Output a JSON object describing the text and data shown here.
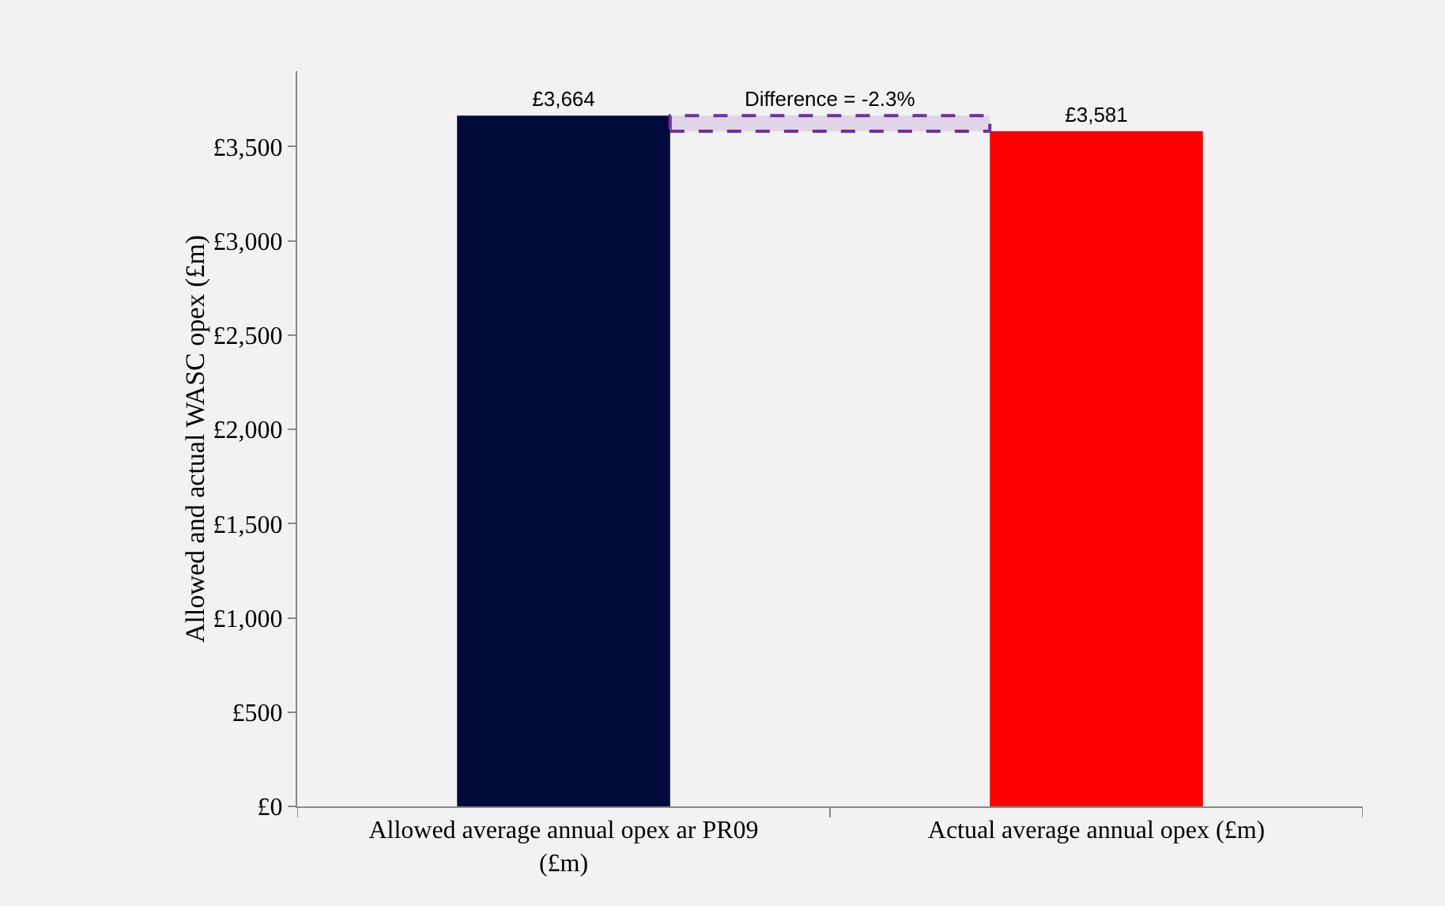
{
  "chart_data": {
    "type": "bar",
    "ylabel": "Allowed and actual WASC opex (£m)",
    "categories": [
      "Allowed average annual opex ar PR09 (£m)",
      "Actual average annual opex (£m)"
    ],
    "values": [
      3664,
      3581
    ],
    "colors": [
      "#000b3c",
      "#ff0000"
    ],
    "value_labels": [
      "£3,664",
      "£3,581"
    ],
    "ylim": [
      0,
      3900
    ],
    "yticks": [
      {
        "value": 0,
        "label": "£0"
      },
      {
        "value": 500,
        "label": "£500"
      },
      {
        "value": 1000,
        "label": "£1,000"
      },
      {
        "value": 1500,
        "label": "£1,500"
      },
      {
        "value": 2000,
        "label": "£2,000"
      },
      {
        "value": 2500,
        "label": "£2,500"
      },
      {
        "value": 3000,
        "label": "£3,000"
      },
      {
        "value": 3500,
        "label": "£3,500"
      }
    ],
    "grid": false,
    "bands": [
      {
        "axis": "y",
        "from": 3581,
        "to": 3664,
        "label": "Difference = -2.3%",
        "color": "#7030a0"
      }
    ]
  }
}
